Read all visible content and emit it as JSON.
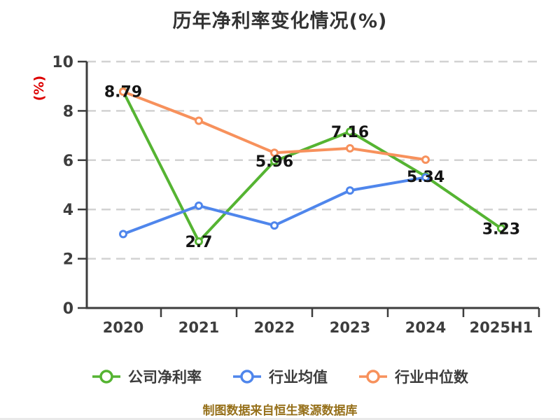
{
  "title": "历年净利率变化情况(%)",
  "y_axis_label": "(%)",
  "footer": "制图数据来自恒生聚源数据库",
  "colors": {
    "background": "#ffffff",
    "title_text": "#333333",
    "axis_line": "#3d3d3d",
    "tick_label": "#3d3d3d",
    "gridline": "#d2d2d2",
    "data_label": "#141414",
    "y_axis_label": "#dd0000",
    "footer_text": "#96701a",
    "marker_fill": "#ffffff",
    "series_company": "#55b432",
    "series_industry_avg": "#4f86ec",
    "series_industry_median": "#f7915c"
  },
  "chart_data": {
    "type": "line",
    "title": "历年净利率变化情况(%)",
    "ylabel": "(%)",
    "categories": [
      "2020",
      "2021",
      "2022",
      "2023",
      "2024",
      "2025H1"
    ],
    "series": [
      {
        "name": "公司净利率",
        "color": "#55b432",
        "values": [
          8.79,
          2.7,
          5.96,
          7.16,
          5.34,
          3.23
        ],
        "labels": [
          "8.79",
          "2.7",
          "5.96",
          "7.16",
          "5.34",
          "3.23"
        ]
      },
      {
        "name": "行业均值",
        "color": "#4f86ec",
        "values": [
          3.0,
          4.15,
          3.35,
          4.77,
          5.3,
          null
        ],
        "labels": null
      },
      {
        "name": "行业中位数",
        "color": "#f7915c",
        "values": [
          8.78,
          7.6,
          6.3,
          6.48,
          6.02,
          null
        ],
        "labels": null
      }
    ],
    "ylim": [
      0,
      10
    ],
    "yticks": [
      0,
      2,
      4,
      6,
      8,
      10
    ],
    "grid": "horizontal-dashed",
    "legend_position": "bottom"
  }
}
